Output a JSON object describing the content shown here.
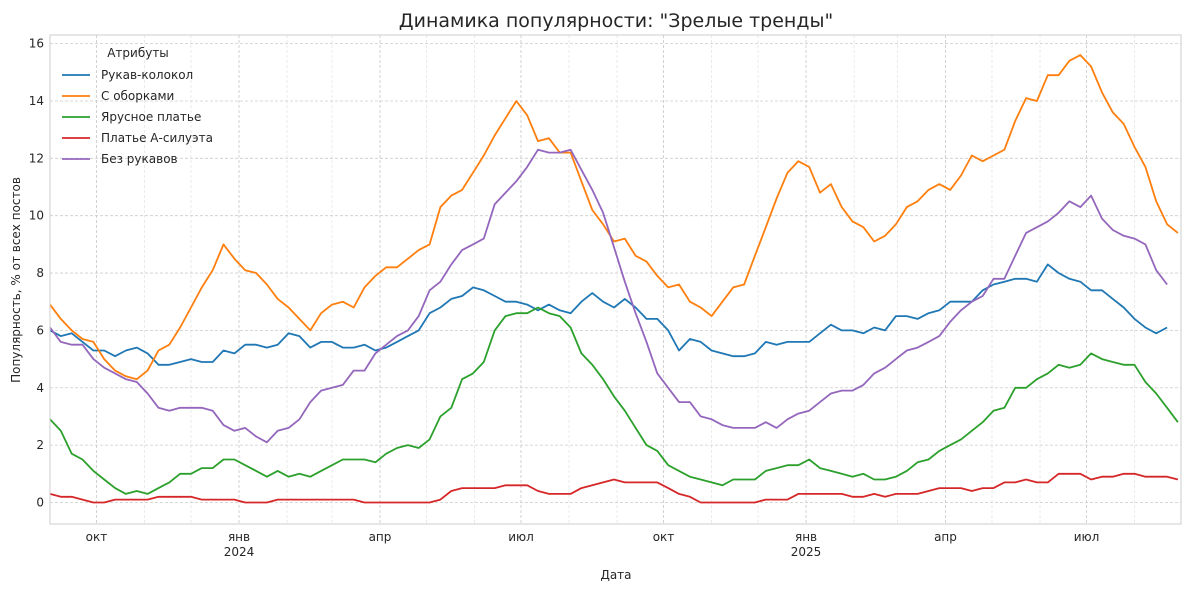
{
  "chart_data": {
    "type": "line",
    "title": "Динамика популярности: \"Зрелые тренды\"",
    "xlabel": "Дата",
    "ylabel": "Популярность, % от всех постов",
    "legend_title": "Атрибуты",
    "legend_position": "top-left",
    "grid": true,
    "xlim": [
      "2023-09-01",
      "2025-08-31"
    ],
    "ylim": [
      -0.75,
      16.3
    ],
    "yticks": [
      0,
      2,
      4,
      6,
      8,
      10,
      12,
      14,
      16
    ],
    "xticks": [
      {
        "date": "2023-10-01",
        "label": "окт",
        "sublabel": ""
      },
      {
        "date": "2024-01-01",
        "label": "янв",
        "sublabel": "2024"
      },
      {
        "date": "2024-04-01",
        "label": "апр",
        "sublabel": ""
      },
      {
        "date": "2024-07-01",
        "label": "июл",
        "sublabel": ""
      },
      {
        "date": "2024-10-01",
        "label": "окт",
        "sublabel": ""
      },
      {
        "date": "2025-01-01",
        "label": "янв",
        "sublabel": "2025"
      },
      {
        "date": "2025-04-01",
        "label": "апр",
        "sublabel": ""
      },
      {
        "date": "2025-07-01",
        "label": "июл",
        "sublabel": ""
      }
    ],
    "x_start": "2023-09-01",
    "x_step_days": 7,
    "series": [
      {
        "name": "Рукав-колокол",
        "color": "#1f77b4",
        "values": [
          6.0,
          5.8,
          5.9,
          5.6,
          5.3,
          5.3,
          5.1,
          5.3,
          5.4,
          5.2,
          4.8,
          4.8,
          4.9,
          5.0,
          4.9,
          4.9,
          5.3,
          5.2,
          5.5,
          5.5,
          5.4,
          5.5,
          5.9,
          5.8,
          5.4,
          5.6,
          5.6,
          5.4,
          5.4,
          5.5,
          5.3,
          5.4,
          5.6,
          5.8,
          6.0,
          6.6,
          6.8,
          7.1,
          7.2,
          7.5,
          7.4,
          7.2,
          7.0,
          7.0,
          6.9,
          6.7,
          6.9,
          6.7,
          6.6,
          7.0,
          7.3,
          7.0,
          6.8,
          7.1,
          6.8,
          6.4,
          6.4,
          6.0,
          5.3,
          5.7,
          5.6,
          5.3,
          5.2,
          5.1,
          5.1,
          5.2,
          5.6,
          5.5,
          5.6,
          5.6,
          5.6,
          5.9,
          6.2,
          6.0,
          6.0,
          5.9,
          6.1,
          6.0,
          6.5,
          6.5,
          6.4,
          6.6,
          6.7,
          7.0,
          7.0,
          7.0,
          7.4,
          7.6,
          7.7,
          7.8,
          7.8,
          7.7,
          8.3,
          8.0,
          7.8,
          7.7,
          7.4,
          7.4,
          7.1,
          6.8,
          6.4,
          6.1,
          5.9,
          6.1
        ]
      },
      {
        "name": "С оборками",
        "color": "#ff7f0e",
        "values": [
          6.9,
          6.4,
          6.0,
          5.7,
          5.6,
          5.0,
          4.6,
          4.4,
          4.3,
          4.6,
          5.3,
          5.5,
          6.1,
          6.8,
          7.5,
          8.1,
          9.0,
          8.5,
          8.1,
          8.0,
          7.6,
          7.1,
          6.8,
          6.4,
          6.0,
          6.6,
          6.9,
          7.0,
          6.8,
          7.5,
          7.9,
          8.2,
          8.2,
          8.5,
          8.8,
          9.0,
          10.3,
          10.7,
          10.9,
          11.5,
          12.1,
          12.8,
          13.4,
          14.0,
          13.5,
          12.6,
          12.7,
          12.2,
          12.2,
          11.2,
          10.2,
          9.7,
          9.1,
          9.2,
          8.6,
          8.4,
          7.9,
          7.5,
          7.6,
          7.0,
          6.8,
          6.5,
          7.0,
          7.5,
          7.6,
          8.6,
          9.6,
          10.6,
          11.5,
          11.9,
          11.7,
          10.8,
          11.1,
          10.3,
          9.8,
          9.6,
          9.1,
          9.3,
          9.7,
          10.3,
          10.5,
          10.9,
          11.1,
          10.9,
          11.4,
          12.1,
          11.9,
          12.1,
          12.3,
          13.3,
          14.1,
          14.0,
          14.9,
          14.9,
          15.4,
          15.6,
          15.2,
          14.3,
          13.6,
          13.2,
          12.4,
          11.7,
          10.5,
          9.7,
          9.4
        ]
      },
      {
        "name": "Ярусное платье",
        "color": "#2ca02c",
        "values": [
          2.9,
          2.5,
          1.7,
          1.5,
          1.1,
          0.8,
          0.5,
          0.3,
          0.4,
          0.3,
          0.5,
          0.7,
          1.0,
          1.0,
          1.2,
          1.2,
          1.5,
          1.5,
          1.3,
          1.1,
          0.9,
          1.1,
          0.9,
          1.0,
          0.9,
          1.1,
          1.3,
          1.5,
          1.5,
          1.5,
          1.4,
          1.7,
          1.9,
          2.0,
          1.9,
          2.2,
          3.0,
          3.3,
          4.3,
          4.5,
          4.9,
          6.0,
          6.5,
          6.6,
          6.6,
          6.8,
          6.6,
          6.5,
          6.1,
          5.2,
          4.8,
          4.3,
          3.7,
          3.2,
          2.6,
          2.0,
          1.8,
          1.3,
          1.1,
          0.9,
          0.8,
          0.7,
          0.6,
          0.8,
          0.8,
          0.8,
          1.1,
          1.2,
          1.3,
          1.3,
          1.5,
          1.2,
          1.1,
          1.0,
          0.9,
          1.0,
          0.8,
          0.8,
          0.9,
          1.1,
          1.4,
          1.5,
          1.8,
          2.0,
          2.2,
          2.5,
          2.8,
          3.2,
          3.3,
          4.0,
          4.0,
          4.3,
          4.5,
          4.8,
          4.7,
          4.8,
          5.2,
          5.0,
          4.9,
          4.8,
          4.8,
          4.2,
          3.8,
          3.3,
          2.8
        ]
      },
      {
        "name": "Платье А-силуэта",
        "color": "#d62728",
        "values": [
          0.3,
          0.2,
          0.2,
          0.1,
          0.0,
          0.0,
          0.1,
          0.1,
          0.1,
          0.1,
          0.2,
          0.2,
          0.2,
          0.2,
          0.1,
          0.1,
          0.1,
          0.1,
          0.0,
          0.0,
          0.0,
          0.1,
          0.1,
          0.1,
          0.1,
          0.1,
          0.1,
          0.1,
          0.1,
          0.0,
          0.0,
          0.0,
          0.0,
          0.0,
          0.0,
          0.0,
          0.1,
          0.4,
          0.5,
          0.5,
          0.5,
          0.5,
          0.6,
          0.6,
          0.6,
          0.4,
          0.3,
          0.3,
          0.3,
          0.5,
          0.6,
          0.7,
          0.8,
          0.7,
          0.7,
          0.7,
          0.7,
          0.5,
          0.3,
          0.2,
          0.0,
          0.0,
          0.0,
          0.0,
          0.0,
          0.0,
          0.1,
          0.1,
          0.1,
          0.3,
          0.3,
          0.3,
          0.3,
          0.3,
          0.2,
          0.2,
          0.3,
          0.2,
          0.3,
          0.3,
          0.3,
          0.4,
          0.5,
          0.5,
          0.5,
          0.4,
          0.5,
          0.5,
          0.7,
          0.7,
          0.8,
          0.7,
          0.7,
          1.0,
          1.0,
          1.0,
          0.8,
          0.9,
          0.9,
          1.0,
          1.0,
          0.9,
          0.9,
          0.9,
          0.8
        ]
      },
      {
        "name": "Без рукавов",
        "color": "#9467bd",
        "values": [
          6.1,
          5.6,
          5.5,
          5.5,
          5.0,
          4.7,
          4.5,
          4.3,
          4.2,
          3.8,
          3.3,
          3.2,
          3.3,
          3.3,
          3.3,
          3.2,
          2.7,
          2.5,
          2.6,
          2.3,
          2.1,
          2.5,
          2.6,
          2.9,
          3.5,
          3.9,
          4.0,
          4.1,
          4.6,
          4.6,
          5.2,
          5.5,
          5.8,
          6.0,
          6.5,
          7.4,
          7.7,
          8.3,
          8.8,
          9.0,
          9.2,
          10.4,
          10.8,
          11.2,
          11.7,
          12.3,
          12.2,
          12.2,
          12.3,
          11.6,
          10.9,
          10.1,
          8.9,
          7.7,
          6.6,
          5.6,
          4.5,
          4.0,
          3.5,
          3.5,
          3.0,
          2.9,
          2.7,
          2.6,
          2.6,
          2.6,
          2.8,
          2.6,
          2.9,
          3.1,
          3.2,
          3.5,
          3.8,
          3.9,
          3.9,
          4.1,
          4.5,
          4.7,
          5.0,
          5.3,
          5.4,
          5.6,
          5.8,
          6.3,
          6.7,
          7.0,
          7.2,
          7.8,
          7.8,
          8.6,
          9.4,
          9.6,
          9.8,
          10.1,
          10.5,
          10.3,
          10.7,
          9.9,
          9.5,
          9.3,
          9.2,
          9.0,
          8.1,
          7.6
        ]
      }
    ]
  }
}
